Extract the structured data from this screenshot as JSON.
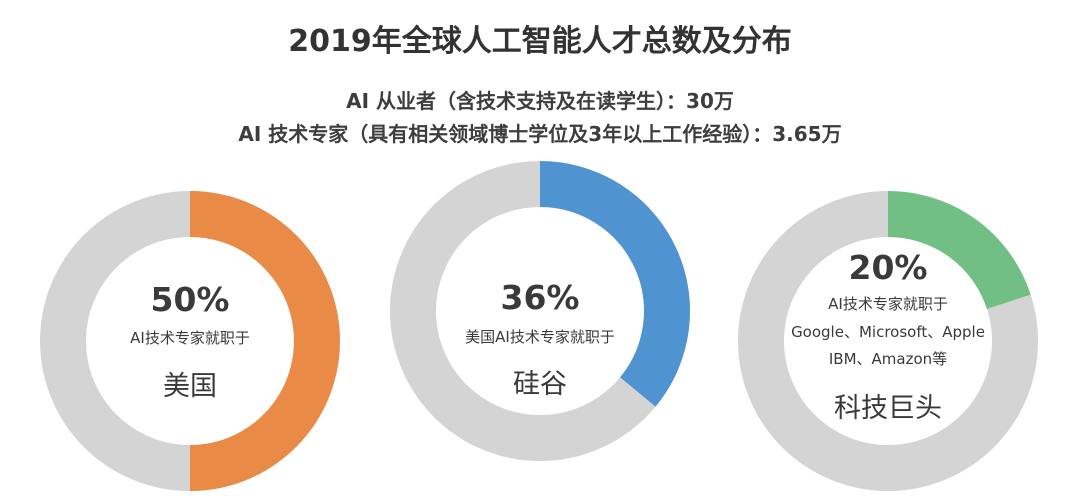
{
  "title": "2019年全球人工智能人才总数及分布",
  "subtitle_lines": [
    "AI 从业者（含技术支持及在读学生）：30万",
    "AI 技术专家（具有相关领域博士学位及3年以上工作经验）：3.65万"
  ],
  "colors": {
    "track": "#d4d4d4",
    "usa": "#ea8a47",
    "silicon_valley": "#4f93d0",
    "tech_giants": "#72bf85"
  },
  "chart_data": [
    {
      "type": "pie",
      "donut": true,
      "value": 50,
      "percent_label": "50%",
      "description": "AI技术专家就职于",
      "category": "美国",
      "color": "#ea8a47"
    },
    {
      "type": "pie",
      "donut": true,
      "value": 36,
      "percent_label": "36%",
      "description": "美国AI技术专家就职于",
      "category": "硅谷",
      "color": "#4f93d0"
    },
    {
      "type": "pie",
      "donut": true,
      "value": 20,
      "percent_label": "20%",
      "description": "AI技术专家就职于",
      "description_lines": [
        "Google、Microsoft、Apple",
        "IBM、Amazon等"
      ],
      "category": "科技巨头",
      "color": "#72bf85"
    }
  ]
}
